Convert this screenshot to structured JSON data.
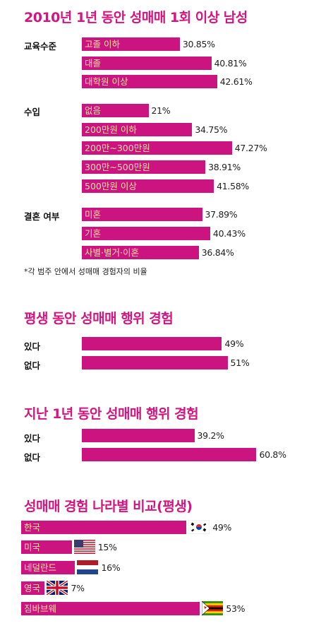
{
  "accent_color": "#cc1480",
  "title_color": "#d4147f",
  "bar_label_color": "#fde2a0",
  "chart_data": [
    {
      "type": "bar",
      "orientation": "horizontal",
      "title": "2010년 1년 동안 성매매 1회 이상 남성",
      "groups": [
        {
          "name": "교육수준",
          "categories": [
            "고졸 이하",
            "대졸",
            "대학원 이상"
          ],
          "values": [
            30.85,
            40.81,
            42.61
          ],
          "labels": [
            "30.85%",
            "40.81%",
            "42.61%"
          ]
        },
        {
          "name": "수입",
          "categories": [
            "없음",
            "200만원 이하",
            "200만~300만원",
            "300만~500만원",
            "500만원 이상"
          ],
          "values": [
            21,
            34.75,
            47.27,
            38.91,
            41.58
          ],
          "labels": [
            "21%",
            "34.75%",
            "47.27%",
            "38.91%",
            "41.58%"
          ]
        },
        {
          "name": "결혼 여부",
          "categories": [
            "미혼",
            "기혼",
            "사별·별거·이혼"
          ],
          "values": [
            37.89,
            40.43,
            36.84
          ],
          "labels": [
            "37.89%",
            "40.43%",
            "36.84%"
          ]
        }
      ],
      "footnote": "*각 범주 안에서 성매매 경험자의 비율"
    },
    {
      "type": "bar",
      "orientation": "horizontal",
      "title": "평생 동안 성매매 행위 경험",
      "categories": [
        "있다",
        "없다"
      ],
      "values": [
        49,
        51
      ],
      "labels": [
        "49%",
        "51%"
      ]
    },
    {
      "type": "bar",
      "orientation": "horizontal",
      "title": "지난 1년 동안 성매매 행위 경험",
      "categories": [
        "있다",
        "없다"
      ],
      "values": [
        39.2,
        60.8
      ],
      "labels": [
        "39.2%",
        "60.8%"
      ]
    },
    {
      "type": "bar",
      "orientation": "horizontal",
      "title": "성매매 경험 나라별 비교(평생)",
      "categories": [
        "한국",
        "미국",
        "네덜란드",
        "영국",
        "짐바브웨"
      ],
      "values": [
        49,
        15,
        16,
        7,
        53
      ],
      "labels": [
        "49%",
        "15%",
        "16%",
        "7%",
        "53%"
      ],
      "flags": [
        "south-korea-flag-icon",
        "usa-flag-icon",
        "netherlands-flag-icon",
        "uk-flag-icon",
        "zimbabwe-flag-icon"
      ]
    }
  ]
}
